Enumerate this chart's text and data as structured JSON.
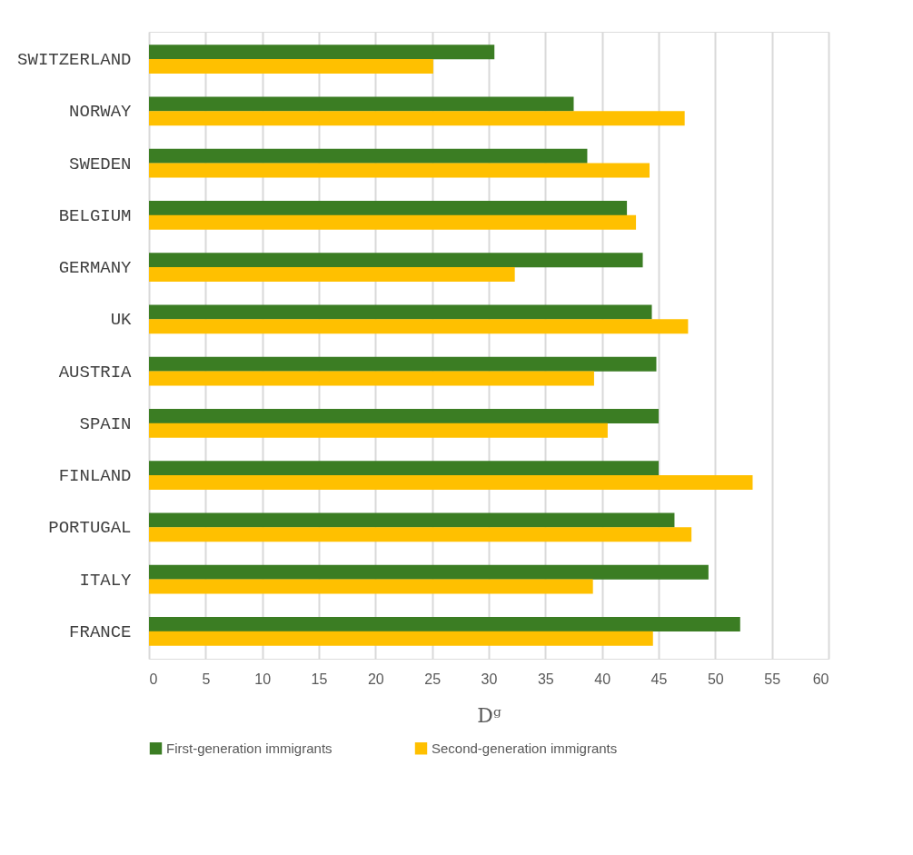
{
  "chart_data": {
    "type": "bar",
    "orientation": "horizontal",
    "xlabel": "Dᵍ",
    "categories": [
      "SWITZERLAND",
      "NORWAY",
      "SWEDEN",
      "BELGIUM",
      "GERMANY",
      "UK",
      "AUSTRIA",
      "SPAIN",
      "FINLAND",
      "PORTUGAL",
      "ITALY",
      "FRANCE"
    ],
    "series": [
      {
        "name": "First-generation immigrants",
        "color": "#3b7d23",
        "values": [
          30.5,
          37.5,
          38.7,
          42.2,
          43.6,
          44.4,
          44.8,
          45.0,
          45.0,
          46.4,
          49.4,
          52.2
        ]
      },
      {
        "name": "Second-generation immigrants",
        "color": "#ffc000",
        "values": [
          25.1,
          47.3,
          44.2,
          43.0,
          32.3,
          47.6,
          39.3,
          40.5,
          53.3,
          47.9,
          39.2,
          44.5
        ]
      }
    ],
    "xlim": [
      0,
      60
    ],
    "xticks": [
      0,
      5,
      10,
      15,
      20,
      25,
      30,
      35,
      40,
      45,
      50,
      55,
      60
    ],
    "grid": "x",
    "legend": "bottom"
  }
}
